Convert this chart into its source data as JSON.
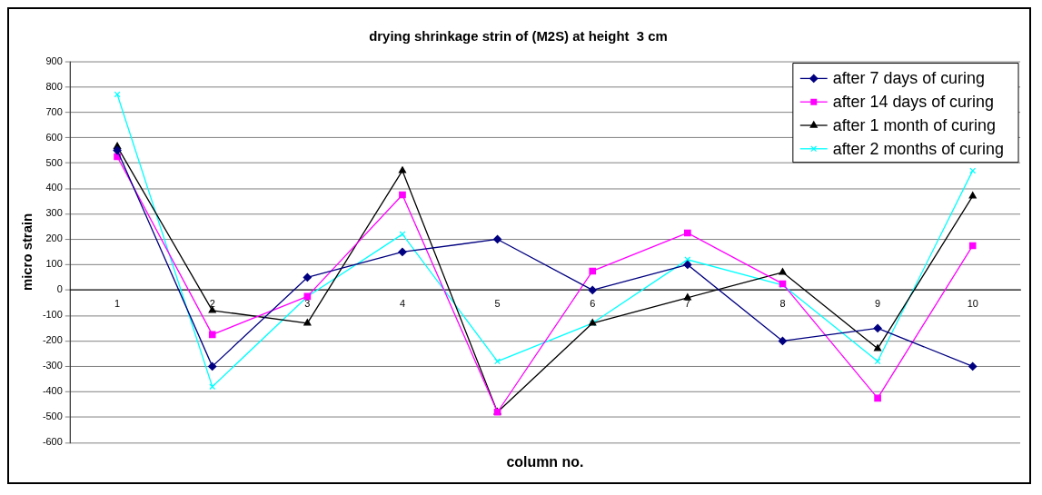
{
  "chart_data": {
    "type": "line",
    "title": "drying shrinkage strin of (M2S) at height  3 cm",
    "xlabel": "column no.",
    "ylabel": "micro strain",
    "categories": [
      "1",
      "2",
      "3",
      "4",
      "5",
      "6",
      "7",
      "8",
      "9",
      "10"
    ],
    "series": [
      {
        "name": "after 7 days of curing",
        "color": "#000080",
        "marker": "diamond",
        "values": [
          550,
          -300,
          50,
          150,
          200,
          0,
          100,
          -200,
          -150,
          -300
        ]
      },
      {
        "name": "after 14 days of curing",
        "color": "#ff00ff",
        "marker": "square",
        "values": [
          525,
          -175,
          -25,
          375,
          -480,
          75,
          225,
          25,
          -425,
          175
        ]
      },
      {
        "name": "after 1 month of curing",
        "color": "#000000",
        "marker": "triangle",
        "values": [
          565,
          -80,
          -130,
          470,
          -480,
          -130,
          -30,
          70,
          -230,
          370
        ]
      },
      {
        "name": "after 2 months of curing",
        "color": "#00ffff",
        "marker": "cross",
        "values": [
          770,
          -380,
          -25,
          220,
          -280,
          -130,
          120,
          20,
          -280,
          470
        ]
      }
    ],
    "ylim": [
      -600,
      900
    ],
    "yticks": [
      -600,
      -500,
      -400,
      -300,
      -200,
      -100,
      0,
      100,
      200,
      300,
      400,
      500,
      600,
      700,
      800,
      900
    ],
    "grid": "y",
    "legend": "top right",
    "line_style": "solid"
  }
}
